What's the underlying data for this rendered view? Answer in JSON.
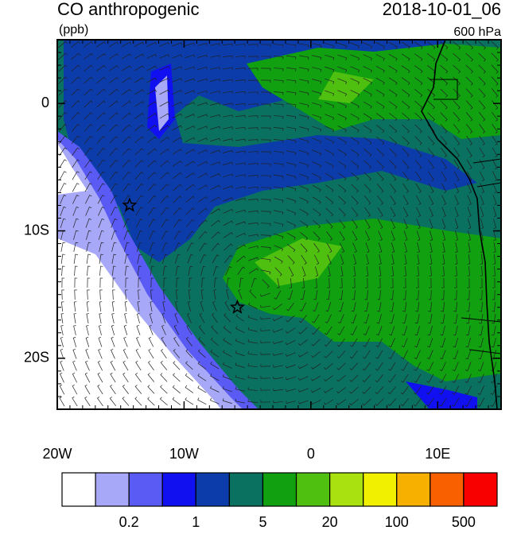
{
  "chart_data": {
    "type": "contour-map",
    "title": "CO anthropogenic",
    "units": "(ppb)",
    "time": "2018-10-01_06",
    "level": "600 hPa",
    "xlim": [
      -20,
      15
    ],
    "ylim": [
      -24,
      5
    ],
    "xticks": [
      {
        "value": -20,
        "label": "20W"
      },
      {
        "value": -10,
        "label": "10W"
      },
      0,
      {
        "value": 10,
        "label": "10E"
      }
    ],
    "yticks": [
      0,
      {
        "value": -10,
        "label": "10S"
      },
      {
        "value": -20,
        "label": "20S"
      }
    ],
    "colors": [
      "#ffffff",
      "#a8a8f8",
      "#5a5af5",
      "#1010f0",
      "#0c3caa",
      "#0a7060",
      "#10a010",
      "#50c010",
      "#a8e010",
      "#f0f000",
      "#f8b000",
      "#f86000",
      "#f80000"
    ],
    "colorbar_labels": [
      "0.2",
      "1",
      "5",
      "20",
      "100",
      "500"
    ],
    "points": {
      "x": [
        -14.3,
        -5.8
      ],
      "y": [
        -8,
        -16
      ]
    }
  }
}
